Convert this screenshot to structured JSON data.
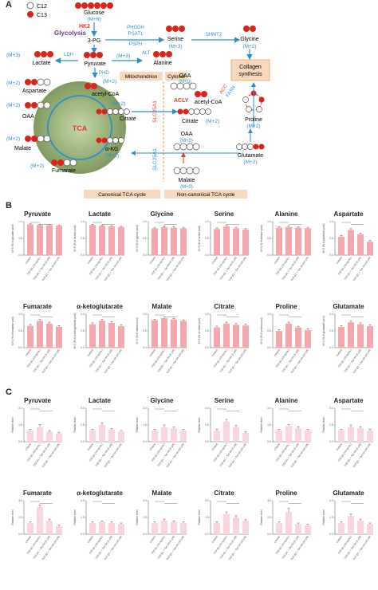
{
  "panel_a": {
    "letter": "A",
    "legend": [
      "C12",
      "C13"
    ],
    "nodes": {
      "glucose": "Glucose",
      "glucose_m": "(M+6)",
      "glycolysis": "Glycolysis",
      "hk2": "HK2",
      "pg3": "3-PG",
      "phgdh": "PHGDH",
      "psat1": "PSAT1",
      "psph": "PSPH",
      "serine": "Serine",
      "serine_m": "(M+3)",
      "shmt2": "SHMT2",
      "glycine": "Glycine",
      "glycine_m": "(M+2)",
      "m3_left": "(M+3)",
      "ldh": "LDH",
      "lactate": "Lactate",
      "pyruvate": "Pyruvate",
      "m3_mid": "(M+3)",
      "alt": "ALT",
      "alanine": "Alanine",
      "collagen1": "Collagen",
      "collagen2": "synthesis",
      "pc": "PC",
      "pdh": "PHD",
      "mito": "Mitochondrion",
      "cyto": "Cytosol",
      "m2_asp": "(M+2)",
      "aspartate": "Aspartate",
      "acetylcoa": "acetyl-CoA",
      "m2_acoa": "(M+2)",
      "oaa": "OAA",
      "m2_oaa": "(M+2)",
      "citrate": "Citrate",
      "m2_cit": "(M+2)",
      "tca": "TCA",
      "malate": "Malate",
      "akg": "α-KG",
      "m2_akg": "(M+2)",
      "m2_mal": "(M+2)",
      "fumarate": "Fumarate",
      "m2_fum": "(M+2)",
      "slc25a1_top": "SLC25A1",
      "slc25a1_bot": "SLC25A1",
      "oaa_c": "OAA",
      "m0_oaa": "(M+0)",
      "acly": "ACLY",
      "acoa_c": "acetyl-CoA",
      "acc": "ACC",
      "fasn": "FASN",
      "citrate_c": "Citrate",
      "m2_cit_c": "(M+2)",
      "proline": "Proline",
      "m2_pro": "(M+2)",
      "oaa_c2": "OAA",
      "m0_oaa2": "(M+0)",
      "glutamate": "Glutamate",
      "m2_glu": "(M+2)",
      "malate_c": "Malate",
      "m0_mal": "(M+0)",
      "canonical": "Canonical TCA cycle",
      "noncanonical": "Non-canonical TCA cycle"
    }
  },
  "panel_b": {
    "letter": "B",
    "groups": [
      "Control",
      "TGF-β1 (10 ng/mL)",
      "TGF-β1 + Tan IIA (5 μM)",
      "TGF-β1 + Tan IIA (10 μM)"
    ],
    "charts": [
      {
        "title": "Pyruvate",
        "ylabel": "M+3 (% of pyruvate pool)",
        "values": [
          0.92,
          0.9,
          0.89,
          0.88
        ],
        "err": [
          0.02,
          0.02,
          0.02,
          0.02
        ]
      },
      {
        "title": "Lactate",
        "ylabel": "M+3 (% of lactate pool)",
        "values": [
          0.9,
          0.88,
          0.86,
          0.84
        ],
        "err": [
          0.02,
          0.02,
          0.02,
          0.02
        ]
      },
      {
        "title": "Glycine",
        "ylabel": "M+2 (% of glycine pool)",
        "values": [
          0.8,
          0.84,
          0.82,
          0.8
        ],
        "err": [
          0.03,
          0.03,
          0.03,
          0.03
        ]
      },
      {
        "title": "Serine",
        "ylabel": "M+3 (% of serine pool)",
        "values": [
          0.78,
          0.86,
          0.8,
          0.76
        ],
        "err": [
          0.03,
          0.03,
          0.03,
          0.03
        ]
      },
      {
        "title": "Alanine",
        "ylabel": "M+3 (% of alanine pool)",
        "values": [
          0.82,
          0.84,
          0.82,
          0.8
        ],
        "err": [
          0.03,
          0.03,
          0.03,
          0.03
        ]
      },
      {
        "title": "Aspartate",
        "ylabel": "M+2 (% of aspartate pool)",
        "values": [
          0.55,
          0.75,
          0.62,
          0.4
        ],
        "err": [
          0.04,
          0.04,
          0.04,
          0.04
        ]
      },
      {
        "title": "Fumarate",
        "ylabel": "M+2 (% of fumarate pool)",
        "values": [
          0.65,
          0.8,
          0.72,
          0.62
        ],
        "err": [
          0.04,
          0.04,
          0.04,
          0.04
        ]
      },
      {
        "title": "α-ketoglutarate",
        "ylabel": "M+2 (% of α-ketoglutarate pool)",
        "values": [
          0.7,
          0.8,
          0.74,
          0.64
        ],
        "err": [
          0.04,
          0.04,
          0.04,
          0.04
        ]
      },
      {
        "title": "Malate",
        "ylabel": "M+2 (% of malate pool)",
        "values": [
          0.82,
          0.88,
          0.84,
          0.8
        ],
        "err": [
          0.03,
          0.03,
          0.03,
          0.03
        ]
      },
      {
        "title": "Citrate",
        "ylabel": "M+2 (% of citrate pool)",
        "values": [
          0.6,
          0.72,
          0.68,
          0.66
        ],
        "err": [
          0.04,
          0.04,
          0.04,
          0.04
        ]
      },
      {
        "title": "Proline",
        "ylabel": "M+2 (% of proline pool)",
        "values": [
          0.5,
          0.72,
          0.6,
          0.52
        ],
        "err": [
          0.04,
          0.04,
          0.04,
          0.04
        ]
      },
      {
        "title": "Glutamate",
        "ylabel": "M+2 (% of glutamate pool)",
        "values": [
          0.62,
          0.76,
          0.7,
          0.64
        ],
        "err": [
          0.04,
          0.04,
          0.04,
          0.04
        ]
      }
    ]
  },
  "panel_c": {
    "letter": "C",
    "ylabel": "Relative level",
    "charts": [
      {
        "title": "Pyruvate",
        "values": [
          1.0,
          1.3,
          0.9,
          0.75
        ],
        "err": [
          0.1,
          0.25,
          0.1,
          0.1
        ]
      },
      {
        "title": "Lactate",
        "values": [
          1.0,
          1.5,
          1.1,
          0.9
        ],
        "err": [
          0.1,
          0.2,
          0.1,
          0.1
        ]
      },
      {
        "title": "Glycine",
        "values": [
          1.0,
          1.3,
          1.2,
          1.0
        ],
        "err": [
          0.1,
          0.2,
          0.1,
          0.1
        ]
      },
      {
        "title": "Serine",
        "values": [
          1.0,
          1.8,
          1.3,
          0.8
        ],
        "err": [
          0.1,
          0.2,
          0.15,
          0.1
        ]
      },
      {
        "title": "Alanine",
        "values": [
          1.0,
          1.4,
          1.2,
          1.0
        ],
        "err": [
          0.1,
          0.15,
          0.15,
          0.1
        ]
      },
      {
        "title": "Aspartate",
        "values": [
          1.0,
          1.3,
          1.2,
          1.0
        ],
        "err": [
          0.1,
          0.2,
          0.15,
          0.1
        ]
      },
      {
        "title": "Fumarate",
        "values": [
          1.0,
          2.4,
          1.2,
          0.7
        ],
        "err": [
          0.1,
          0.2,
          0.15,
          0.1
        ]
      },
      {
        "title": "α-ketoglutarate",
        "values": [
          1.0,
          1.1,
          1.0,
          0.9
        ],
        "err": [
          0.1,
          0.1,
          0.1,
          0.1
        ]
      },
      {
        "title": "Malate",
        "values": [
          1.0,
          1.2,
          1.1,
          1.0
        ],
        "err": [
          0.1,
          0.15,
          0.1,
          0.1
        ]
      },
      {
        "title": "Citrate",
        "values": [
          1.0,
          1.8,
          1.5,
          1.2
        ],
        "err": [
          0.1,
          0.2,
          0.15,
          0.1
        ]
      },
      {
        "title": "Proline",
        "values": [
          1.0,
          2.0,
          0.9,
          0.8
        ],
        "err": [
          0.1,
          0.3,
          0.1,
          0.1
        ]
      },
      {
        "title": "Glutamate",
        "values": [
          1.0,
          1.6,
          1.2,
          0.9
        ],
        "err": [
          0.1,
          0.2,
          0.15,
          0.1
        ]
      }
    ]
  },
  "colors": {
    "bar": "#f4a8ae",
    "bar_light": "#f9d5dd",
    "arrow_blue": "#2c8fcb",
    "red": "#e03a2f",
    "purple": "#6a3c96",
    "orange_box": "#f7d8bd",
    "orange_dash": "#f0913a",
    "tca_green": "#8ca66a"
  }
}
